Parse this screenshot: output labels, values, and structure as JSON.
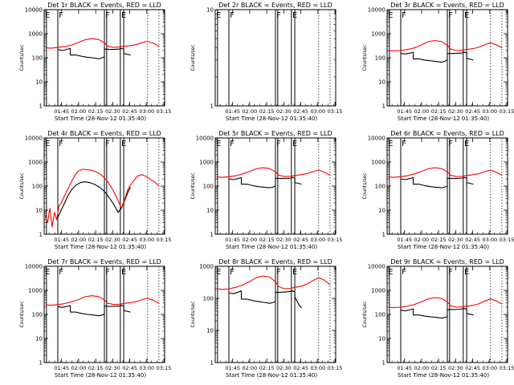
{
  "colors": {
    "events": "#000000",
    "lld": "#ff0000",
    "background": "#ffffff",
    "axis": "#000000"
  },
  "shared": {
    "xlabel": "Start Time (28-Nov-12 01:35:40)",
    "ylabel": "Counts/sec",
    "xticks": [
      "01:45",
      "02:00",
      "02:15",
      "02:30",
      "02:45",
      "03:00",
      "03:15"
    ],
    "yticks": [
      "1",
      "10",
      "100",
      "1000",
      "10000"
    ],
    "flags": [
      "E",
      "F",
      "F",
      "E"
    ]
  },
  "chart_data": [
    {
      "type": "line",
      "title": "Det 1r  BLACK = Events, RED = LLD",
      "xlabel": "Start Time (28-Nov-12 01:35:40)",
      "ylabel": "Counts/sec",
      "ylim": [
        1,
        10000
      ],
      "series": [
        {
          "name": "Events",
          "color": "#000000",
          "x": [
            6,
            10,
            15,
            17,
            17,
            22,
            27,
            32,
            37,
            42,
            45,
            47,
            47,
            52,
            57,
            61,
            61,
            64,
            64,
            70
          ],
          "y": [
            220,
            200,
            230,
            240,
            130,
            130,
            115,
            105,
            100,
            90,
            100,
            110,
            230,
            220,
            225,
            230,
            250,
            230,
            150,
            130
          ]
        },
        {
          "name": "LLD",
          "color": "#ff0000",
          "x": [
            -5,
            0,
            6,
            12,
            18,
            24,
            30,
            36,
            42,
            47,
            50,
            55,
            60,
            64,
            70,
            75,
            80,
            85,
            90,
            95
          ],
          "y": [
            260,
            250,
            270,
            290,
            340,
            430,
            560,
            620,
            570,
            420,
            300,
            270,
            280,
            300,
            320,
            350,
            420,
            480,
            400,
            300
          ]
        }
      ]
    },
    {
      "type": "line",
      "title": "Det 2r  BLACK = Events, RED = LLD",
      "xlabel": "Start Time (28-Nov-12 01:35:40)",
      "ylabel": "Counts/sec",
      "ylim": [
        1,
        10
      ],
      "series": []
    },
    {
      "type": "line",
      "title": "Det 3r  BLACK = Events, RED = LLD",
      "xlabel": "Start Time (28-Nov-12 01:35:40)",
      "ylabel": "Counts/sec",
      "ylim": [
        1,
        10000
      ],
      "series": [
        {
          "name": "Events",
          "color": "#000000",
          "x": [
            6,
            10,
            15,
            17,
            17,
            22,
            27,
            32,
            37,
            42,
            45,
            47,
            47,
            52,
            57,
            61,
            61,
            64,
            64,
            70
          ],
          "y": [
            150,
            145,
            160,
            170,
            90,
            90,
            80,
            75,
            70,
            65,
            72,
            80,
            150,
            150,
            155,
            160,
            175,
            160,
            95,
            80
          ]
        },
        {
          "name": "LLD",
          "color": "#ff0000",
          "x": [
            -5,
            0,
            6,
            12,
            18,
            24,
            30,
            36,
            42,
            47,
            50,
            55,
            60,
            64,
            70,
            75,
            80,
            85,
            90,
            95
          ],
          "y": [
            200,
            190,
            200,
            220,
            260,
            340,
            460,
            520,
            470,
            330,
            230,
            200,
            205,
            220,
            240,
            280,
            350,
            420,
            350,
            260
          ]
        }
      ]
    },
    {
      "type": "line",
      "title": "Det 4r  BLACK = Events, RED = LLD",
      "xlabel": "Start Time (28-Nov-12 01:35:40)",
      "ylabel": "Counts/sec",
      "ylim": [
        1,
        10000
      ],
      "series": [
        {
          "name": "Events",
          "color": "#000000",
          "x": [
            6,
            9,
            12,
            15,
            18,
            22,
            26,
            30,
            34,
            38,
            41,
            44,
            47,
            50,
            53,
            56,
            59,
            62,
            64,
            66,
            68,
            70
          ],
          "y": [
            5,
            10,
            20,
            40,
            70,
            110,
            140,
            150,
            140,
            120,
            100,
            80,
            60,
            40,
            25,
            15,
            8,
            12,
            20,
            35,
            60,
            90
          ]
        },
        {
          "name": "LLD",
          "color": "#ff0000",
          "x": [
            -5,
            -3,
            -1,
            1,
            3,
            5,
            7,
            9,
            12,
            15,
            18,
            21,
            24,
            28,
            32,
            36,
            40,
            44,
            47,
            50,
            53,
            56,
            59,
            62,
            65,
            68,
            72,
            76,
            80,
            84,
            88,
            92,
            95
          ],
          "y": [
            6,
            3,
            12,
            2,
            8,
            4,
            15,
            20,
            40,
            80,
            150,
            280,
            420,
            500,
            480,
            450,
            380,
            300,
            220,
            150,
            90,
            50,
            25,
            12,
            30,
            80,
            150,
            260,
            300,
            250,
            180,
            140,
            100
          ]
        }
      ]
    },
    {
      "type": "line",
      "title": "Det 5r  BLACK = Events, RED = LLD",
      "xlabel": "Start Time (28-Nov-12 01:35:40)",
      "ylabel": "Counts/sec",
      "ylim": [
        1,
        10000
      ],
      "series": [
        {
          "name": "Events",
          "color": "#000000",
          "x": [
            6,
            10,
            15,
            17,
            17,
            22,
            27,
            32,
            37,
            42,
            45,
            47,
            47,
            52,
            57,
            61,
            61,
            64,
            64,
            70
          ],
          "y": [
            200,
            185,
            210,
            225,
            120,
            120,
            105,
            95,
            90,
            85,
            92,
            100,
            210,
            205,
            210,
            215,
            230,
            215,
            140,
            120
          ]
        },
        {
          "name": "LLD",
          "color": "#ff0000",
          "x": [
            -5,
            0,
            6,
            12,
            18,
            24,
            30,
            36,
            42,
            47,
            50,
            55,
            60,
            64,
            70,
            75,
            80,
            85,
            90,
            95
          ],
          "y": [
            240,
            230,
            245,
            270,
            320,
            400,
            520,
            580,
            530,
            390,
            280,
            250,
            255,
            275,
            300,
            330,
            400,
            460,
            380,
            280
          ]
        }
      ]
    },
    {
      "type": "line",
      "title": "Det 6r  BLACK = Events, RED = LLD",
      "xlabel": "Start Time (28-Nov-12 01:35:40)",
      "ylabel": "Counts/sec",
      "ylim": [
        1,
        10000
      ],
      "series": [
        {
          "name": "Events",
          "color": "#000000",
          "x": [
            6,
            10,
            15,
            17,
            17,
            22,
            27,
            32,
            37,
            42,
            45,
            47,
            47,
            52,
            57,
            61,
            61,
            64,
            64,
            70
          ],
          "y": [
            200,
            185,
            210,
            225,
            120,
            120,
            105,
            95,
            90,
            85,
            92,
            100,
            210,
            205,
            210,
            215,
            230,
            215,
            140,
            120
          ]
        },
        {
          "name": "LLD",
          "color": "#ff0000",
          "x": [
            -5,
            0,
            6,
            12,
            18,
            24,
            30,
            36,
            42,
            47,
            50,
            55,
            60,
            64,
            70,
            75,
            80,
            85,
            90,
            95
          ],
          "y": [
            240,
            230,
            245,
            270,
            320,
            400,
            520,
            580,
            530,
            390,
            280,
            250,
            255,
            275,
            300,
            330,
            400,
            460,
            380,
            280
          ]
        }
      ]
    },
    {
      "type": "line",
      "title": "Det 7r  BLACK = Events, RED = LLD",
      "xlabel": "Start Time (28-Nov-12 01:35:40)",
      "ylabel": "Counts/sec",
      "ylim": [
        1,
        10000
      ],
      "series": [
        {
          "name": "Events",
          "color": "#000000",
          "x": [
            6,
            10,
            15,
            17,
            17,
            22,
            27,
            32,
            37,
            42,
            45,
            47,
            47,
            52,
            57,
            61,
            61,
            64,
            64,
            70
          ],
          "y": [
            210,
            195,
            220,
            235,
            125,
            125,
            110,
            100,
            95,
            88,
            95,
            105,
            220,
            215,
            220,
            225,
            240,
            225,
            145,
            125
          ]
        },
        {
          "name": "LLD",
          "color": "#ff0000",
          "x": [
            -5,
            0,
            6,
            12,
            18,
            24,
            30,
            36,
            42,
            47,
            50,
            55,
            60,
            64,
            70,
            75,
            80,
            85,
            90,
            95
          ],
          "y": [
            250,
            240,
            255,
            280,
            330,
            410,
            540,
            600,
            550,
            400,
            290,
            260,
            265,
            285,
            310,
            340,
            410,
            470,
            390,
            290
          ]
        }
      ]
    },
    {
      "type": "line",
      "title": "Det 8r  BLACK = Events, RED = LLD",
      "xlabel": "Start Time (28-Nov-12 01:35:40)",
      "ylabel": "Counts/sec",
      "ylim": [
        1,
        1000
      ],
      "series": [
        {
          "name": "Events",
          "color": "#000000",
          "x": [
            6,
            10,
            15,
            17,
            17,
            22,
            27,
            32,
            37,
            42,
            45,
            47,
            47,
            52,
            57,
            61,
            61,
            64,
            64,
            68,
            70
          ],
          "y": [
            150,
            140,
            160,
            170,
            95,
            95,
            85,
            80,
            75,
            70,
            75,
            80,
            155,
            155,
            160,
            165,
            175,
            160,
            110,
            60,
            50
          ]
        },
        {
          "name": "LLD",
          "color": "#ff0000",
          "x": [
            -5,
            0,
            6,
            12,
            18,
            24,
            30,
            36,
            42,
            47,
            50,
            55,
            60,
            64,
            70,
            75,
            80,
            85,
            90,
            95
          ],
          "y": [
            200,
            190,
            200,
            220,
            260,
            330,
            440,
            500,
            460,
            330,
            230,
            200,
            205,
            220,
            240,
            280,
            360,
            440,
            370,
            270
          ]
        }
      ]
    },
    {
      "type": "line",
      "title": "Det 9r  BLACK = Events, RED = LLD",
      "xlabel": "Start Time (28-Nov-12 01:35:40)",
      "ylabel": "Counts/sec",
      "ylim": [
        1,
        10000
      ],
      "series": [
        {
          "name": "Events",
          "color": "#000000",
          "x": [
            6,
            10,
            15,
            17,
            17,
            22,
            27,
            32,
            37,
            42,
            45,
            47,
            47,
            52,
            57,
            61,
            61,
            64,
            64,
            70
          ],
          "y": [
            150,
            140,
            160,
            170,
            95,
            95,
            85,
            80,
            75,
            70,
            75,
            80,
            160,
            160,
            165,
            170,
            180,
            165,
            110,
            95
          ]
        },
        {
          "name": "LLD",
          "color": "#ff0000",
          "x": [
            -5,
            0,
            6,
            12,
            18,
            24,
            30,
            36,
            42,
            47,
            50,
            55,
            60,
            64,
            70,
            75,
            80,
            85,
            90,
            95
          ],
          "y": [
            200,
            190,
            200,
            220,
            260,
            330,
            440,
            500,
            460,
            330,
            230,
            200,
            205,
            220,
            240,
            280,
            360,
            440,
            370,
            270
          ]
        }
      ]
    }
  ]
}
